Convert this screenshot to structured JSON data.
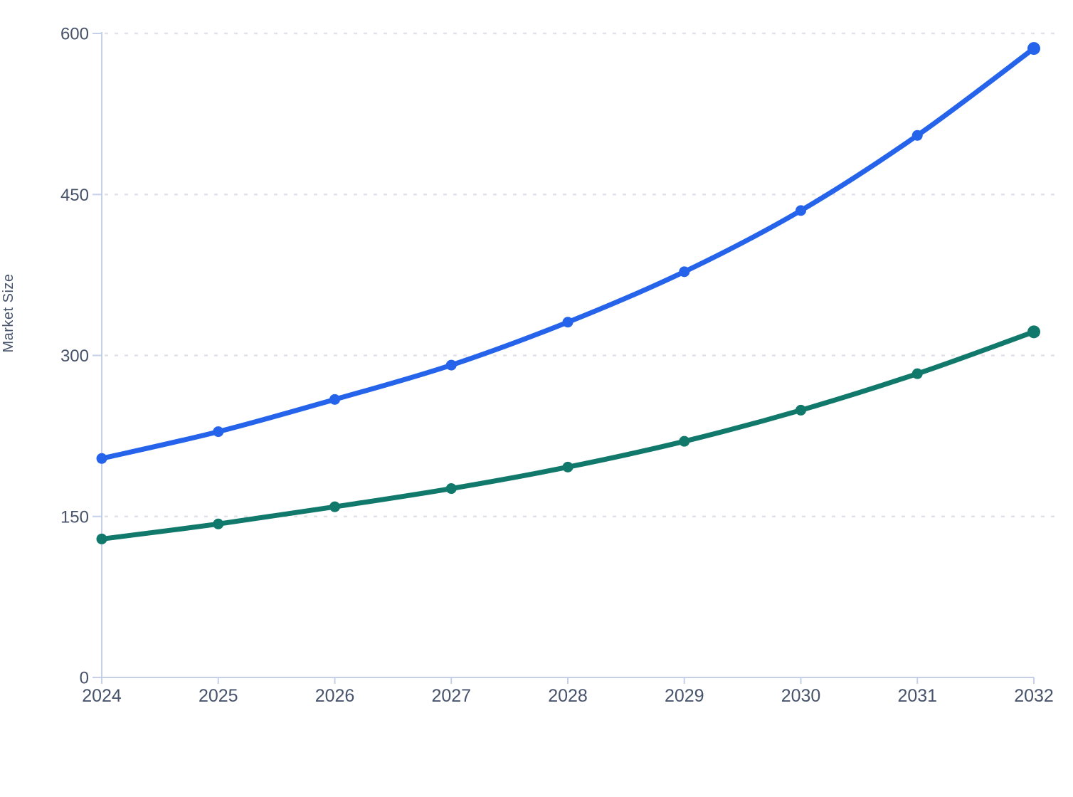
{
  "chart_data": {
    "type": "line",
    "x": [
      2024,
      2025,
      2026,
      2027,
      2028,
      2029,
      2030,
      2031,
      2032
    ],
    "series": [
      {
        "id": "blue",
        "color": "#2563eb",
        "values": [
          204,
          229,
          259,
          291,
          331,
          378,
          435,
          505,
          586
        ]
      },
      {
        "id": "green",
        "color": "#11796b",
        "values": [
          129,
          143,
          159,
          176,
          196,
          220,
          249,
          283,
          322
        ]
      }
    ],
    "ylabel": "Market Size",
    "xlabel": "",
    "yticks": [
      0,
      150,
      300,
      450,
      600
    ],
    "ylim": [
      0,
      600
    ],
    "xlim": [
      2024,
      2032
    ],
    "grid": "horizontal-dashed",
    "legend": "none",
    "markers": "filled-circles"
  },
  "axes": {
    "y_tick_labels": [
      "0",
      "150",
      "300",
      "450",
      "600"
    ],
    "x_tick_labels": [
      "2024",
      "2025",
      "2026",
      "2027",
      "2028",
      "2029",
      "2030",
      "2031",
      "2032"
    ]
  },
  "style": {
    "series_blue": "#2563eb",
    "series_green": "#11796b",
    "axis_line": "#c5cfe9",
    "grid_line": "#dfe2e8",
    "tick_label": "#47536a",
    "background": "#ffffff"
  }
}
